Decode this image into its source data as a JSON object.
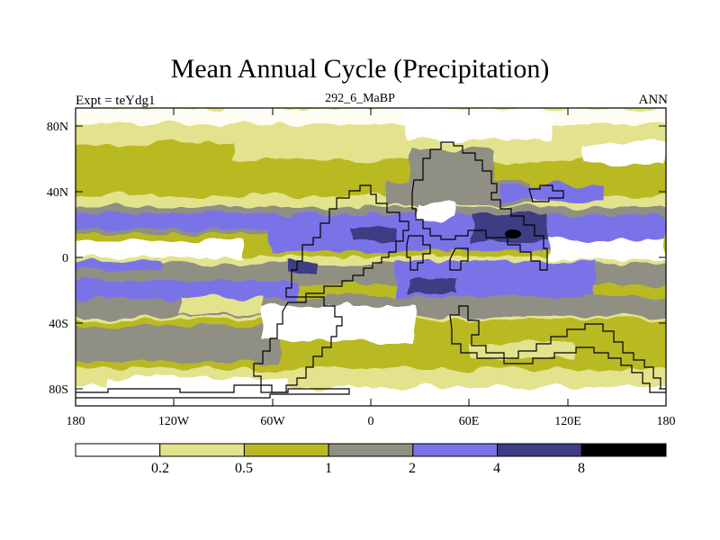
{
  "title": "Mean Annual Cycle (Precipitation)",
  "subtitle_left": "Expt = teYdg1",
  "subtitle_center": "292_6_MaBP",
  "subtitle_right": "ANN",
  "map": {
    "projection": "cylindrical equidistant",
    "x_ticks": [
      "180",
      "120W",
      "60W",
      "0",
      "60E",
      "120E",
      "180"
    ],
    "y_ticks": [
      "80N",
      "40N",
      "0",
      "40S",
      "80S"
    ],
    "variable": "Precipitation",
    "period": "annual mean"
  },
  "legend": {
    "labels": [
      "0.2",
      "0.5",
      "1",
      "2",
      "4",
      "8"
    ],
    "colors": [
      "#ffffff",
      "#e3e38e",
      "#b9b924",
      "#8f8f84",
      "#7a73e8",
      "#3d3d84",
      "#000000"
    ]
  }
}
